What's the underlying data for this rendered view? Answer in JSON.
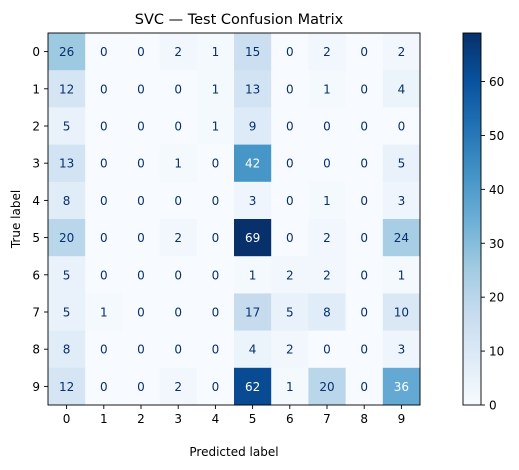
{
  "chart_data": {
    "type": "heatmap",
    "title": "SVC — Test Confusion Matrix",
    "xlabel": "Predicted label",
    "ylabel": "True label",
    "x_categories": [
      "0",
      "1",
      "2",
      "3",
      "4",
      "5",
      "6",
      "7",
      "8",
      "9"
    ],
    "y_categories": [
      "0",
      "1",
      "2",
      "3",
      "4",
      "5",
      "6",
      "7",
      "8",
      "9"
    ],
    "values": [
      [
        26,
        0,
        0,
        2,
        1,
        15,
        0,
        2,
        0,
        2
      ],
      [
        12,
        0,
        0,
        0,
        1,
        13,
        0,
        1,
        0,
        4
      ],
      [
        5,
        0,
        0,
        0,
        1,
        9,
        0,
        0,
        0,
        0
      ],
      [
        13,
        0,
        0,
        1,
        0,
        42,
        0,
        0,
        0,
        5
      ],
      [
        8,
        0,
        0,
        0,
        0,
        3,
        0,
        1,
        0,
        3
      ],
      [
        20,
        0,
        0,
        2,
        0,
        69,
        0,
        2,
        0,
        24
      ],
      [
        5,
        0,
        0,
        0,
        0,
        1,
        2,
        2,
        0,
        1
      ],
      [
        5,
        1,
        0,
        0,
        0,
        17,
        5,
        8,
        0,
        10
      ],
      [
        8,
        0,
        0,
        0,
        0,
        4,
        2,
        0,
        0,
        3
      ],
      [
        12,
        0,
        0,
        2,
        0,
        62,
        1,
        20,
        0,
        36
      ]
    ],
    "colormap": "Blues",
    "color_range": [
      0,
      69
    ],
    "colorbar_ticks": [
      0,
      10,
      20,
      30,
      40,
      50,
      60
    ],
    "text_color_light": "#ffffff",
    "text_color_dark": "#08306b",
    "grid": false
  }
}
